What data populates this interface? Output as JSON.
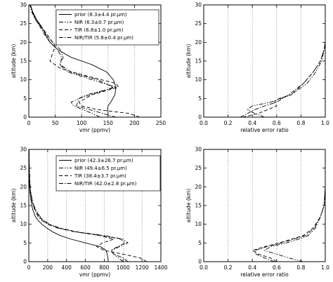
{
  "chart_data": [
    {
      "type": "line",
      "xlabel": "vmr (ppmv)",
      "ylabel": "altitude (km)",
      "xlim": [
        0,
        250
      ],
      "ylim": [
        0,
        30
      ],
      "x_ticks": [
        "0",
        "50",
        "100",
        "150",
        "200",
        "250"
      ],
      "y_ticks": [
        "0",
        "5",
        "10",
        "15",
        "20",
        "25",
        "30"
      ],
      "grid": "vertical dotted lines",
      "legend": "top-right",
      "series": [
        {
          "name": "prior (8.3±4.4 pr.μm)",
          "style": "solid",
          "points": [
            [
              150,
              0
            ],
            [
              150,
              1
            ],
            [
              149,
              2
            ],
            [
              150,
              3
            ],
            [
              155,
              4
            ],
            [
              163,
              6
            ],
            [
              165,
              8
            ],
            [
              160,
              10
            ],
            [
              148,
              12
            ],
            [
              120,
              14
            ],
            [
              80,
              16
            ],
            [
              55,
              18
            ],
            [
              40,
              20
            ],
            [
              32,
              22
            ],
            [
              25,
              24
            ],
            [
              15,
              26
            ],
            [
              8,
              28
            ],
            [
              3,
              30
            ]
          ]
        },
        {
          "name": "NIR (6.3±0.7 pr.μm)",
          "style": "dash-dot-dot",
          "points": [
            [
              135,
              0
            ],
            [
              120,
              1
            ],
            [
              85,
              3
            ],
            [
              80,
              4
            ],
            [
              110,
              6
            ],
            [
              165,
              8
            ],
            [
              120,
              10
            ],
            [
              75,
              12
            ],
            [
              58,
              14
            ],
            [
              65,
              16
            ],
            [
              60,
              18
            ],
            [
              45,
              20
            ],
            [
              33,
              22
            ],
            [
              24,
              24
            ],
            [
              14,
              26
            ],
            [
              7,
              28
            ],
            [
              2,
              30
            ]
          ]
        },
        {
          "name": "TIR (6.8±1.0 pr.μm)",
          "style": "dashed",
          "points": [
            [
              210,
              0
            ],
            [
              190,
              1
            ],
            [
              130,
              2
            ],
            [
              100,
              3
            ],
            [
              95,
              4
            ],
            [
              120,
              6
            ],
            [
              170,
              8
            ],
            [
              165,
              9
            ],
            [
              110,
              11
            ],
            [
              60,
              13
            ],
            [
              40,
              15
            ],
            [
              45,
              17
            ],
            [
              50,
              19
            ],
            [
              40,
              21
            ],
            [
              30,
              23
            ],
            [
              18,
              25
            ],
            [
              9,
              27
            ],
            [
              3,
              30
            ]
          ]
        },
        {
          "name": "NIR/TIR (5.8±0.4 pr.μm)",
          "style": "dash-dot",
          "points": [
            [
              165,
              0
            ],
            [
              140,
              1
            ],
            [
              90,
              3
            ],
            [
              95,
              5
            ],
            [
              140,
              7
            ],
            [
              160,
              8
            ],
            [
              130,
              10
            ],
            [
              80,
              12
            ],
            [
              60,
              14
            ],
            [
              62,
              16
            ],
            [
              55,
              18
            ],
            [
              40,
              20
            ],
            [
              30,
              22
            ],
            [
              22,
              24
            ],
            [
              13,
              26
            ],
            [
              6,
              28
            ],
            [
              2,
              30
            ]
          ]
        }
      ]
    },
    {
      "type": "line",
      "xlabel": "relative error ratio",
      "ylabel": "altitude (km)",
      "xlim": [
        0,
        1
      ],
      "ylim": [
        0,
        30
      ],
      "x_ticks": [
        "0.0",
        "0.2",
        "0.4",
        "0.6",
        "0.8",
        "1.0"
      ],
      "y_ticks": [
        "0",
        "5",
        "10",
        "15",
        "20",
        "25",
        "30"
      ],
      "grid": "vertical dotted lines",
      "series": [
        {
          "style": "dash-dot-dot",
          "points": [
            [
              0.5,
              0
            ],
            [
              0.42,
              1
            ],
            [
              0.36,
              2
            ],
            [
              0.4,
              3
            ],
            [
              0.55,
              4
            ],
            [
              0.72,
              6
            ],
            [
              0.85,
              9
            ],
            [
              0.92,
              12
            ],
            [
              0.97,
              15
            ],
            [
              0.99,
              18
            ],
            [
              1.0,
              20
            ],
            [
              1.0,
              30
            ]
          ]
        },
        {
          "style": "dashed",
          "points": [
            [
              0.32,
              0
            ],
            [
              0.45,
              1
            ],
            [
              0.6,
              3
            ],
            [
              0.58,
              4
            ],
            [
              0.62,
              5
            ],
            [
              0.72,
              6
            ],
            [
              0.82,
              9
            ],
            [
              0.9,
              12
            ],
            [
              0.96,
              15
            ],
            [
              0.99,
              18
            ],
            [
              1.0,
              20
            ],
            [
              1.0,
              30
            ]
          ]
        },
        {
          "style": "dash-dot",
          "points": [
            [
              0.3,
              0
            ],
            [
              0.36,
              1
            ],
            [
              0.42,
              2
            ],
            [
              0.5,
              3
            ],
            [
              0.6,
              4
            ],
            [
              0.7,
              6
            ],
            [
              0.82,
              9
            ],
            [
              0.9,
              12
            ],
            [
              0.96,
              15
            ],
            [
              0.99,
              18
            ],
            [
              1.0,
              20
            ],
            [
              1.0,
              30
            ]
          ]
        }
      ]
    },
    {
      "type": "line",
      "xlabel": "vmr (ppmv)",
      "ylabel": "altitude (km)",
      "xlim": [
        0,
        1400
      ],
      "ylim": [
        0,
        30
      ],
      "x_ticks": [
        "0",
        "200",
        "400",
        "600",
        "800",
        "1000",
        "1200",
        "1400"
      ],
      "y_ticks": [
        "0",
        "5",
        "10",
        "15",
        "20",
        "25",
        "30"
      ],
      "grid": "vertical dotted lines",
      "legend": "top-right",
      "series": [
        {
          "name": "prior (42.3±26.7 pr.μm)",
          "style": "solid",
          "points": [
            [
              840,
              0
            ],
            [
              840,
              1
            ],
            [
              830,
              2
            ],
            [
              820,
              3
            ],
            [
              760,
              4
            ],
            [
              600,
              5
            ],
            [
              450,
              6
            ],
            [
              330,
              7
            ],
            [
              250,
              8
            ],
            [
              190,
              9
            ],
            [
              140,
              10
            ],
            [
              100,
              11
            ],
            [
              70,
              12
            ],
            [
              40,
              14
            ],
            [
              25,
              16
            ],
            [
              15,
              18
            ],
            [
              8,
              20
            ],
            [
              4,
              25
            ],
            [
              2,
              30
            ]
          ]
        },
        {
          "name": "NIR (49.4±6.5 pr.μm)",
          "style": "dash-dot-dot",
          "points": [
            [
              1000,
              0
            ],
            [
              950,
              1
            ],
            [
              900,
              2
            ],
            [
              880,
              3
            ],
            [
              960,
              4
            ],
            [
              1050,
              5
            ],
            [
              1000,
              6
            ],
            [
              800,
              7
            ],
            [
              500,
              8
            ],
            [
              330,
              9
            ],
            [
              220,
              10
            ],
            [
              160,
              11
            ],
            [
              120,
              12
            ],
            [
              70,
              14
            ],
            [
              40,
              16
            ],
            [
              25,
              18
            ],
            [
              15,
              20
            ],
            [
              6,
              25
            ],
            [
              2,
              30
            ]
          ]
        },
        {
          "name": "TIR (38.4±3.7 pr.μm)",
          "style": "dashed",
          "points": [
            [
              1250,
              0
            ],
            [
              1180,
              1
            ],
            [
              1000,
              2
            ],
            [
              800,
              3
            ],
            [
              720,
              4
            ],
            [
              780,
              5
            ],
            [
              900,
              6
            ],
            [
              750,
              7
            ],
            [
              500,
              8
            ],
            [
              320,
              9
            ],
            [
              210,
              10
            ],
            [
              150,
              11
            ],
            [
              110,
              12
            ],
            [
              65,
              14
            ],
            [
              38,
              16
            ],
            [
              22,
              18
            ],
            [
              12,
              20
            ],
            [
              5,
              25
            ],
            [
              2,
              30
            ]
          ]
        },
        {
          "name": "NIR/TIR (42.0±2.8 pr.μm)",
          "style": "dash-dot",
          "points": [
            [
              1050,
              0
            ],
            [
              1000,
              1
            ],
            [
              900,
              2
            ],
            [
              870,
              3
            ],
            [
              940,
              4
            ],
            [
              1020,
              5
            ],
            [
              980,
              6
            ],
            [
              760,
              7
            ],
            [
              480,
              8
            ],
            [
              300,
              9
            ],
            [
              200,
              10
            ],
            [
              140,
              11
            ],
            [
              100,
              12
            ],
            [
              60,
              14
            ],
            [
              35,
              16
            ],
            [
              20,
              18
            ],
            [
              10,
              20
            ],
            [
              4,
              25
            ],
            [
              2,
              30
            ]
          ]
        }
      ]
    },
    {
      "type": "line",
      "xlabel": "relative error ratio",
      "ylabel": "altitude (km)",
      "xlim": [
        0,
        1
      ],
      "ylim": [
        0,
        30
      ],
      "x_ticks": [
        "0.0",
        "0.2",
        "0.4",
        "0.6",
        "0.8",
        "1.0"
      ],
      "y_ticks": [
        "0",
        "5",
        "10",
        "15",
        "20",
        "25",
        "30"
      ],
      "grid": "vertical dotted lines",
      "series": [
        {
          "style": "dash-dot-dot",
          "points": [
            [
              0.82,
              0
            ],
            [
              0.7,
              1
            ],
            [
              0.6,
              2
            ],
            [
              0.5,
              3
            ],
            [
              0.55,
              4
            ],
            [
              0.68,
              5
            ],
            [
              0.78,
              6
            ],
            [
              0.86,
              7
            ],
            [
              0.92,
              9
            ],
            [
              0.96,
              12
            ],
            [
              0.99,
              15
            ],
            [
              1.0,
              20
            ],
            [
              1.0,
              30
            ]
          ]
        },
        {
          "style": "dashed",
          "points": [
            [
              0.6,
              0
            ],
            [
              0.55,
              1
            ],
            [
              0.45,
              2
            ],
            [
              0.4,
              3
            ],
            [
              0.5,
              4
            ],
            [
              0.62,
              5
            ],
            [
              0.72,
              6
            ],
            [
              0.82,
              7
            ],
            [
              0.9,
              9
            ],
            [
              0.96,
              12
            ],
            [
              0.99,
              15
            ],
            [
              1.0,
              20
            ],
            [
              1.0,
              30
            ]
          ]
        },
        {
          "style": "dash-dot",
          "points": [
            [
              0.58,
              0
            ],
            [
              0.5,
              1
            ],
            [
              0.43,
              2
            ],
            [
              0.42,
              3
            ],
            [
              0.52,
              4
            ],
            [
              0.64,
              5
            ],
            [
              0.74,
              6
            ],
            [
              0.84,
              7
            ],
            [
              0.91,
              9
            ],
            [
              0.96,
              12
            ],
            [
              0.99,
              15
            ],
            [
              1.0,
              20
            ],
            [
              1.0,
              30
            ]
          ]
        }
      ]
    }
  ]
}
